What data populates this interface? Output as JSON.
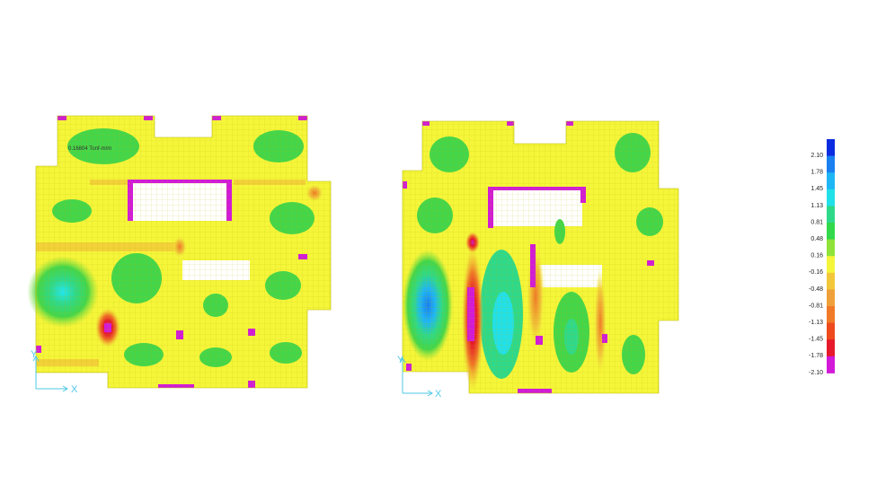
{
  "annotation": "0.16804 Tonf-m/m",
  "axes": {
    "x_label": "X",
    "y_label": "Y"
  },
  "color_scale": {
    "labels": [
      "2.10",
      "1.78",
      "1.45",
      "1.13",
      "0.81",
      "0.48",
      "0.16",
      "-0.16",
      "-0.48",
      "-0.81",
      "-1.13",
      "-1.45",
      "-1.78",
      "-2.10"
    ],
    "colors": [
      "#0a2be0",
      "#1a7ff0",
      "#1fb6f5",
      "#22e0e8",
      "#2fd98a",
      "#32d94a",
      "#8fe23a",
      "#f5f53a",
      "#f2c83a",
      "#f0a03a",
      "#f07a28",
      "#ee4a1c",
      "#e61a2a",
      "#d21ad8"
    ]
  },
  "plots": [
    {
      "name": "left-contour-plot"
    },
    {
      "name": "right-contour-plot"
    }
  ]
}
